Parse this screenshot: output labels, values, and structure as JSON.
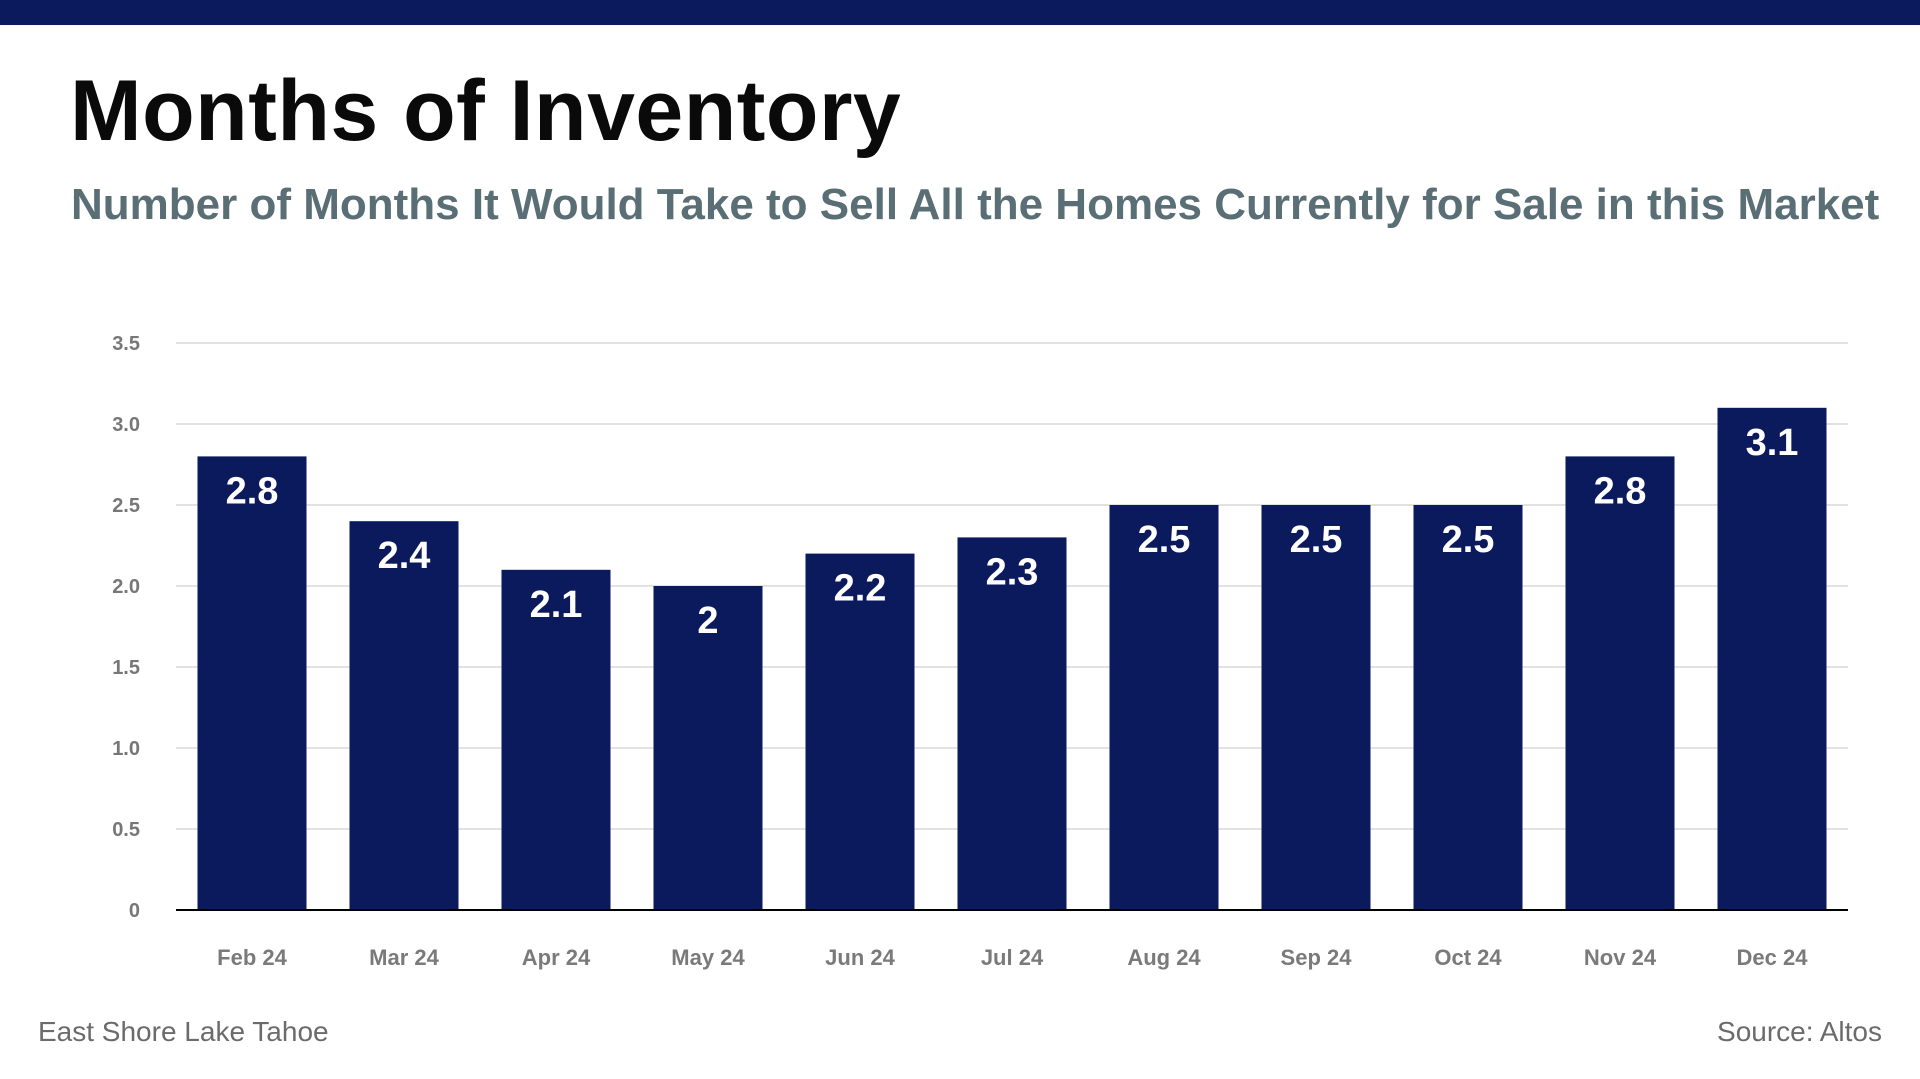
{
  "header": {
    "title": "Months of Inventory",
    "subtitle": "Number of Months It Would Take to Sell All the Homes Currently for Sale in this Market"
  },
  "footer": {
    "location": "East Shore Lake Tahoe",
    "source": "Source: Altos"
  },
  "colors": {
    "bar": "#0b1a5c",
    "top_bar": "#0b1a5c",
    "grid": "#d9d9d9",
    "axis": "#000000"
  },
  "chart_data": {
    "type": "bar",
    "title": "",
    "xlabel": "",
    "ylabel": "",
    "categories": [
      "Feb 24",
      "Mar 24",
      "Apr 24",
      "May 24",
      "Jun 24",
      "Jul 24",
      "Aug 24",
      "Sep 24",
      "Oct 24",
      "Nov 24",
      "Dec 24"
    ],
    "values": [
      2.8,
      2.4,
      2.1,
      2,
      2.2,
      2.3,
      2.5,
      2.5,
      2.5,
      2.8,
      3.1
    ],
    "value_labels": [
      "2.8",
      "2.4",
      "2.1",
      "2",
      "2.2",
      "2.3",
      "2.5",
      "2.5",
      "2.5",
      "2.8",
      "3.1"
    ],
    "ylim": [
      0,
      3.5
    ],
    "yticks": [
      0,
      0.5,
      1.0,
      1.5,
      2.0,
      2.5,
      3.0,
      3.5
    ],
    "ytick_labels": [
      "0",
      "0.5",
      "1.0",
      "1.5",
      "2.0",
      "2.5",
      "3.0",
      "3.5"
    ],
    "grid": true,
    "legend": "none"
  }
}
